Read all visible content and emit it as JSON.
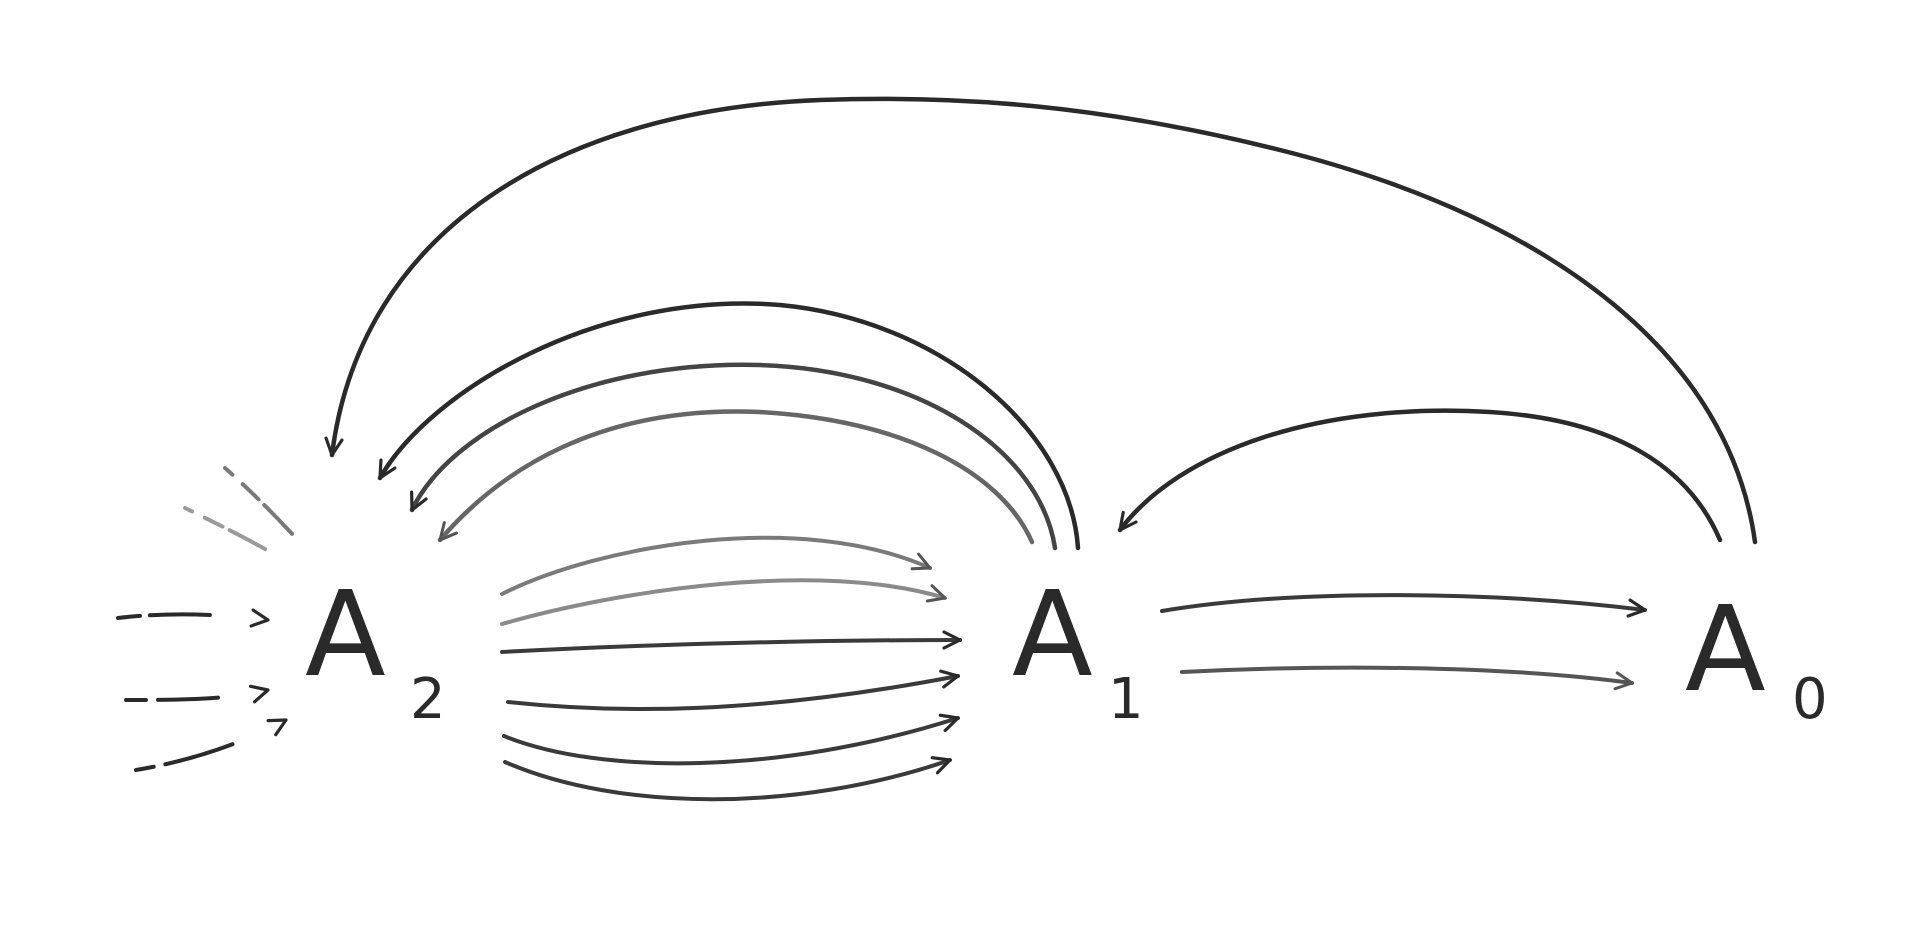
{
  "nodes": [
    {
      "id": "A2",
      "letter": "A",
      "sub": "2"
    },
    {
      "id": "A1",
      "letter": "A",
      "sub": "1"
    },
    {
      "id": "A0",
      "letter": "A",
      "sub": "0"
    }
  ],
  "edges": {
    "incoming_dashed_to_A2": 3,
    "faint_dashed_into_A2": 2,
    "A2_to_A1": 6,
    "A1_to_A0": 2,
    "A1_to_A2": 3,
    "A0_to_A1": 1,
    "A0_to_A2": 1
  },
  "colors": {
    "ink": "#2a2a2a",
    "ink_soft": "#555555",
    "ink_faint": "#9a9a9a"
  }
}
